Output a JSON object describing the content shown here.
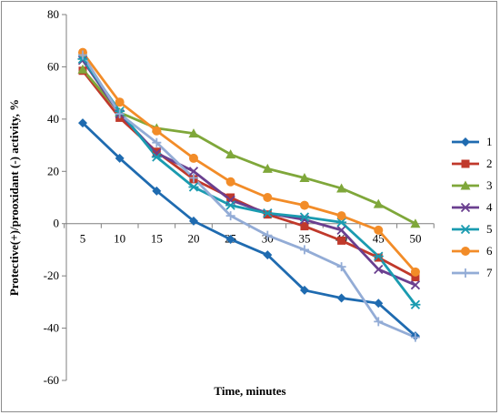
{
  "chart_data": {
    "type": "line",
    "title": "",
    "xlabel": "Time, minutes",
    "ylabel": "Protective(+)/prooxidant (-)  activity, %",
    "x": [
      5,
      10,
      15,
      20,
      25,
      30,
      35,
      40,
      45,
      50
    ],
    "ylim": [
      -60,
      80
    ],
    "yticks": [
      -60,
      -40,
      -20,
      0,
      20,
      40,
      60,
      80
    ],
    "grid": false,
    "legend_position": "right",
    "series": [
      {
        "name": "1",
        "color": "#1F6BB0",
        "marker": "diamond",
        "values": [
          38.5,
          25,
          12.5,
          1,
          -6,
          -12,
          -25.5,
          -28.5,
          -30.5,
          -43
        ]
      },
      {
        "name": "2",
        "color": "#C0392B",
        "marker": "square",
        "values": [
          58.5,
          40.5,
          27.5,
          17,
          10,
          3.5,
          -1,
          -6.5,
          -13,
          -20.5
        ]
      },
      {
        "name": "3",
        "color": "#7FA73A",
        "marker": "triangle",
        "values": [
          59,
          42.5,
          36.5,
          34.5,
          26.5,
          21,
          17.5,
          13.5,
          7.5,
          0
        ]
      },
      {
        "name": "4",
        "color": "#6A3F8F",
        "marker": "x",
        "values": [
          62.5,
          42,
          27,
          20,
          9,
          4,
          1.5,
          -2.5,
          -17.5,
          -23.5
        ]
      },
      {
        "name": "5",
        "color": "#1A9BB0",
        "marker": "star",
        "values": [
          63,
          43,
          25.5,
          14,
          7,
          4,
          2.5,
          0.5,
          -12.5,
          -31
        ]
      },
      {
        "name": "6",
        "color": "#F28C28",
        "marker": "circle",
        "values": [
          65.5,
          46.5,
          35.5,
          25,
          16,
          10,
          7,
          3,
          -2.5,
          -18.5
        ]
      },
      {
        "name": "7",
        "color": "#93ACD6",
        "marker": "plus",
        "values": [
          64.5,
          42,
          31,
          17.5,
          3,
          -4.5,
          -10,
          -16.5,
          -37.5,
          -43.5
        ]
      }
    ]
  }
}
